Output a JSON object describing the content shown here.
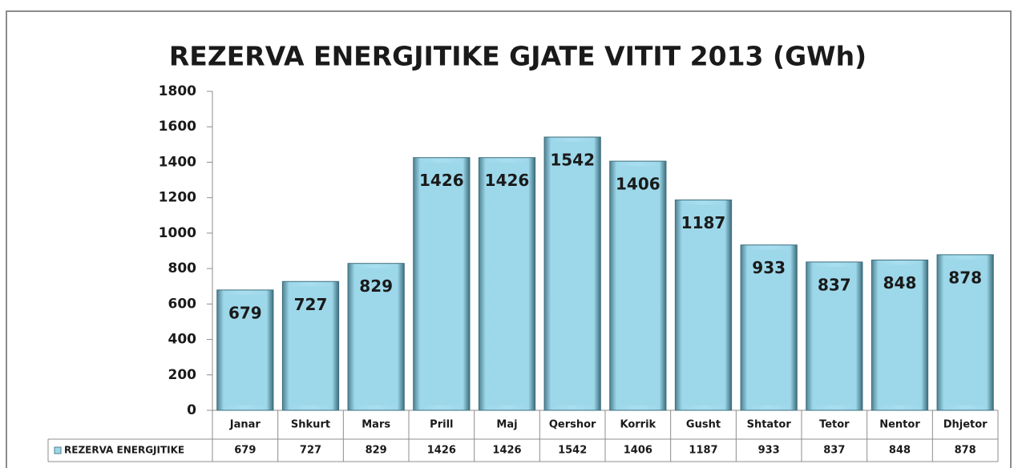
{
  "chart_data": {
    "type": "bar",
    "title": "REZERVA ENERGJITIKE GJATE VITIT 2013 (GWh)",
    "categories": [
      "Janar",
      "Shkurt",
      "Mars",
      "Prill",
      "Maj",
      "Qershor",
      "Korrik",
      "Gusht",
      "Shtator",
      "Tetor",
      "Nentor",
      "Dhjetor"
    ],
    "series": [
      {
        "name": "REZERVA ENERGJITIKE",
        "color": "#9dd8ea",
        "values": [
          679,
          727,
          829,
          1426,
          1426,
          1542,
          1406,
          1187,
          933,
          837,
          848,
          878
        ]
      }
    ],
    "ylim": [
      0,
      1800
    ],
    "yticks": [
      0,
      200,
      400,
      600,
      800,
      1000,
      1200,
      1400,
      1600,
      1800
    ],
    "grid": false
  }
}
